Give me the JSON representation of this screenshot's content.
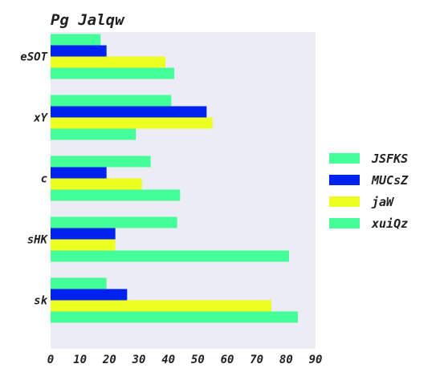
{
  "chart_data": {
    "type": "bar",
    "orientation": "horizontal",
    "title": "Pg Jalqw",
    "xlabel": "",
    "ylabel": "",
    "categories": [
      "eSOT",
      "xY",
      "c",
      "sHK",
      "sk"
    ],
    "series": [
      {
        "name": "JSFKS",
        "color": "#44ff99",
        "values": [
          17,
          41,
          34,
          43,
          19
        ]
      },
      {
        "name": "MUCsZ",
        "color": "#0022ee",
        "values": [
          19,
          53,
          19,
          22,
          26
        ]
      },
      {
        "name": "jaW",
        "color": "#eeff22",
        "values": [
          39,
          55,
          31,
          22,
          75
        ]
      },
      {
        "name": "xuiQz",
        "color": "#44ff99",
        "values": [
          42,
          29,
          44,
          81,
          84
        ]
      }
    ],
    "xlim": [
      0,
      90
    ],
    "xticks": [
      0,
      10,
      20,
      30,
      40,
      50,
      60,
      70,
      80,
      90
    ],
    "grid": false,
    "legend_position": "right",
    "plot_background": "#ececf4"
  }
}
